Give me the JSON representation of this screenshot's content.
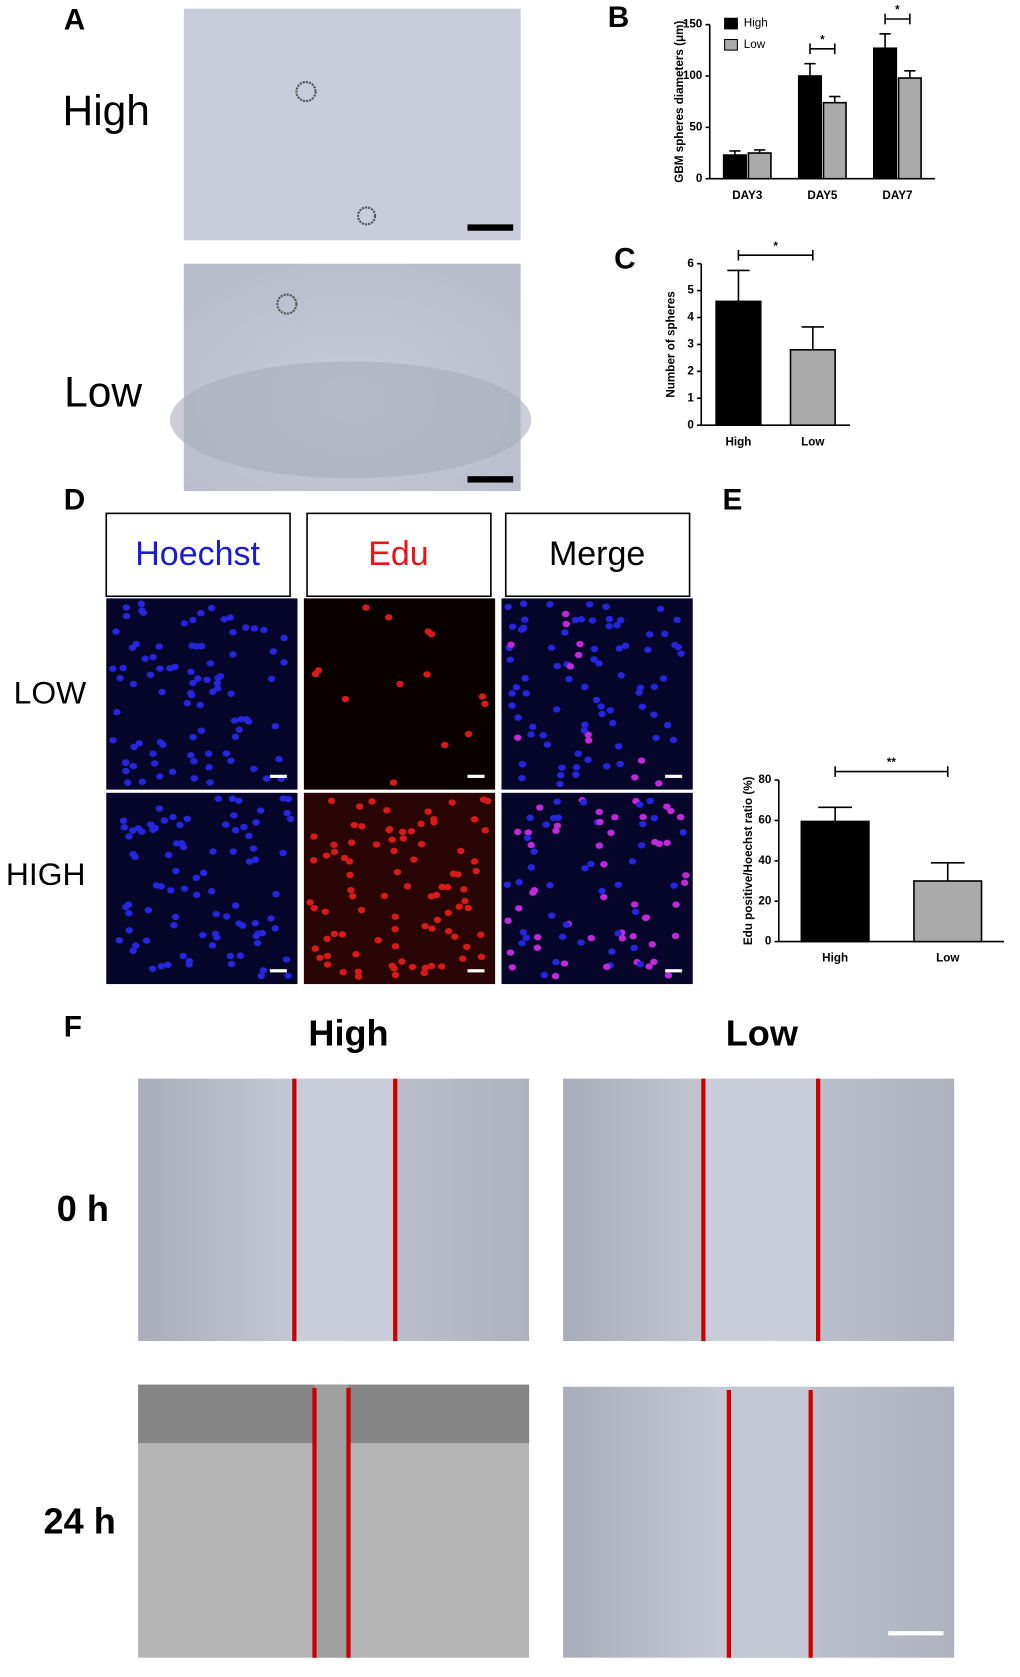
{
  "panel_labels": [
    "A",
    "B",
    "C",
    "D",
    "E",
    "F"
  ],
  "panel_a": {
    "rows": [
      "High",
      "Low"
    ]
  },
  "panel_d": {
    "columns": [
      "Hoechst",
      "Edu",
      "Merge"
    ],
    "rows": [
      "LOW",
      "HIGH"
    ]
  },
  "panel_f": {
    "columns": [
      "High",
      "Low"
    ],
    "rows": [
      "0 h",
      "24 h"
    ]
  },
  "chart_data": [
    {
      "type": "bar",
      "y_label": "GBM spheres diameters (μm)",
      "categories": [
        "DAY3",
        "DAY5",
        "DAY7"
      ],
      "series": [
        {
          "name": "High",
          "color": "#000000",
          "values": [
            23,
            100,
            127
          ],
          "errors": [
            4,
            12,
            14
          ]
        },
        {
          "name": "Low",
          "color": "#aaaaaa",
          "values": [
            25,
            74,
            98
          ],
          "errors": [
            3,
            6,
            7
          ]
        }
      ],
      "significance": [
        null,
        "*",
        "*"
      ],
      "ylim": [
        0,
        150
      ],
      "yticks": [
        0,
        50,
        100,
        150
      ],
      "legend": "top-left"
    },
    {
      "type": "bar",
      "y_label": "Number of spheres",
      "categories": [
        "High",
        "Low"
      ],
      "values": [
        4.6,
        2.8
      ],
      "errors": [
        1.15,
        0.85
      ],
      "colors": [
        "#000000",
        "#aaaaaa"
      ],
      "significance": "*",
      "ylim": [
        0,
        6
      ],
      "yticks": [
        0,
        1,
        2,
        3,
        4,
        5,
        6
      ]
    },
    {
      "type": "bar",
      "y_label": "Edu positive/Hoechst ratio (%)",
      "categories": [
        "High",
        "Low"
      ],
      "values": [
        59.5,
        30
      ],
      "errors": [
        7,
        9
      ],
      "colors": [
        "#000000",
        "#aaaaaa"
      ],
      "significance": "**",
      "ylim": [
        0,
        80
      ],
      "yticks": [
        0,
        20,
        40,
        60,
        80
      ]
    }
  ]
}
